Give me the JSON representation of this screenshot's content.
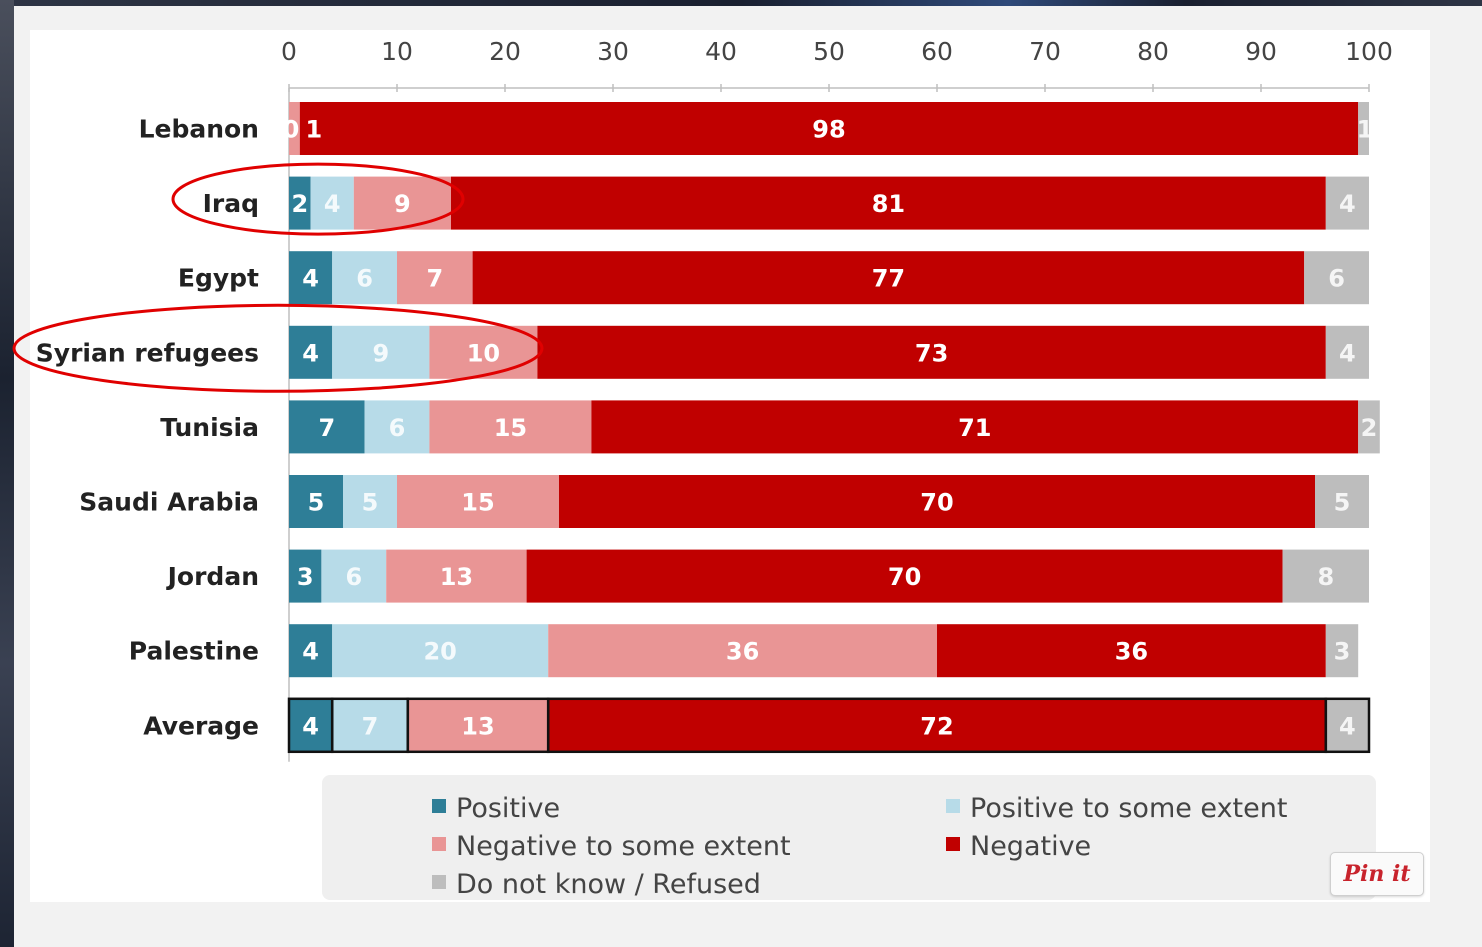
{
  "colors": {
    "positive": "#2e7e97",
    "positive_some": "#b7dbe8",
    "negative_some": "#e99595",
    "negative": "#c00000",
    "dk": "#bdbdbd",
    "highlight_circle": "#e00000"
  },
  "pin_button": {
    "label": "Pin it"
  },
  "chart_data": {
    "type": "bar",
    "orientation": "horizontal",
    "stacked": true,
    "title": "",
    "xlabel": "",
    "ylabel": "",
    "xlim": [
      0,
      100
    ],
    "x_ticks": [
      "0",
      "10",
      "20",
      "30",
      "40",
      "50",
      "60",
      "70",
      "80",
      "90",
      "100"
    ],
    "categories": [
      "Lebanon",
      "Iraq",
      "Egypt",
      "Syrian refugees",
      "Tunisia",
      "Saudi Arabia",
      "Jordan",
      "Palestine",
      "Average"
    ],
    "series": [
      {
        "name": "Positive",
        "color_key": "positive",
        "values": [
          0,
          2,
          4,
          4,
          7,
          5,
          3,
          4,
          4
        ]
      },
      {
        "name": "Positive to some extent",
        "color_key": "positive_some",
        "values": [
          0,
          4,
          6,
          9,
          6,
          5,
          6,
          20,
          7
        ]
      },
      {
        "name": "Negative to some extent",
        "color_key": "negative_some",
        "values": [
          1,
          9,
          7,
          10,
          15,
          15,
          13,
          36,
          13
        ]
      },
      {
        "name": "Negative",
        "color_key": "negative",
        "values": [
          98,
          81,
          77,
          73,
          71,
          70,
          70,
          36,
          72
        ]
      },
      {
        "name": "Do not know / Refused",
        "color_key": "dk",
        "values": [
          1,
          4,
          6,
          4,
          2,
          5,
          8,
          3,
          4
        ]
      }
    ],
    "segment_labels": [
      [
        "0",
        "",
        "1",
        "98",
        "1"
      ],
      [
        "2",
        "4",
        "9",
        "81",
        "4"
      ],
      [
        "4",
        "6",
        "7",
        "77",
        "6"
      ],
      [
        "4",
        "9",
        "10",
        "73",
        "4"
      ],
      [
        "7",
        "6",
        "15",
        "71",
        "2"
      ],
      [
        "5",
        "5",
        "15",
        "70",
        "5"
      ],
      [
        "3",
        "6",
        "13",
        "70",
        "8"
      ],
      [
        "4",
        "20",
        "36",
        "36",
        "3"
      ],
      [
        "4",
        "7",
        "13",
        "72",
        "4"
      ]
    ],
    "highlighted_categories": [
      "Iraq",
      "Syrian refugees"
    ],
    "outlined_category": "Average",
    "legend_position": "bottom",
    "grid": false
  }
}
